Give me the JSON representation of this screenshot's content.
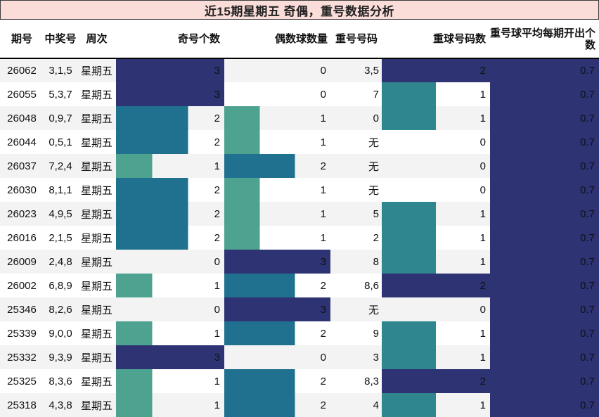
{
  "title": "近15期星期五 奇偶，重号数据分析",
  "colors": {
    "navy": "#2d3373",
    "teal_dark": "#20718f",
    "teal_mid": "#2f868f",
    "green": "#4da290",
    "title_bg": "#fadcd9",
    "title_border": "#3c3c3c",
    "stripe": "#f3f3f3",
    "header_border": "#000000"
  },
  "chart_data": {
    "type": "table",
    "title": "近15期星期五 奇偶，重号数据分析",
    "columns": [
      "期号",
      "中奖号",
      "周次",
      "奇号个数",
      "偶数球数量",
      "重号号码",
      "重球号码数",
      "重号球平均每期开出个数"
    ],
    "bar_columns": {
      "odd": {
        "max": 3
      },
      "even": {
        "max": 3
      },
      "rc": {
        "max": 2
      },
      "avg": {
        "max": 0.7
      }
    },
    "value_colors": {
      "odd": {
        "3": "navy",
        "2": "teal_dark",
        "1": "green"
      },
      "even": {
        "3": "navy",
        "2": "teal_dark",
        "1": "green"
      },
      "rc": {
        "2": "navy",
        "1": "teal_mid"
      },
      "avg": {
        "0.7": "navy"
      }
    },
    "rows": [
      {
        "issue": "26062",
        "win": "3,1,5",
        "week": "星期五",
        "odd": 3,
        "even": 0,
        "repeat": "3,5",
        "rc": 2,
        "avg": "0.7"
      },
      {
        "issue": "26055",
        "win": "5,3,7",
        "week": "星期五",
        "odd": 3,
        "even": 0,
        "repeat": "7",
        "rc": 1,
        "avg": "0.7"
      },
      {
        "issue": "26048",
        "win": "0,9,7",
        "week": "星期五",
        "odd": 2,
        "even": 1,
        "repeat": "0",
        "rc": 1,
        "avg": "0.7"
      },
      {
        "issue": "26044",
        "win": "0,5,1",
        "week": "星期五",
        "odd": 2,
        "even": 1,
        "repeat": "无",
        "rc": 0,
        "avg": "0.7"
      },
      {
        "issue": "26037",
        "win": "7,2,4",
        "week": "星期五",
        "odd": 1,
        "even": 2,
        "repeat": "无",
        "rc": 0,
        "avg": "0.7"
      },
      {
        "issue": "26030",
        "win": "8,1,1",
        "week": "星期五",
        "odd": 2,
        "even": 1,
        "repeat": "无",
        "rc": 0,
        "avg": "0.7"
      },
      {
        "issue": "26023",
        "win": "4,9,5",
        "week": "星期五",
        "odd": 2,
        "even": 1,
        "repeat": "5",
        "rc": 1,
        "avg": "0.7"
      },
      {
        "issue": "26016",
        "win": "2,1,5",
        "week": "星期五",
        "odd": 2,
        "even": 1,
        "repeat": "2",
        "rc": 1,
        "avg": "0.7"
      },
      {
        "issue": "26009",
        "win": "2,4,8",
        "week": "星期五",
        "odd": 0,
        "even": 3,
        "repeat": "8",
        "rc": 1,
        "avg": "0.7"
      },
      {
        "issue": "26002",
        "win": "6,8,9",
        "week": "星期五",
        "odd": 1,
        "even": 2,
        "repeat": "8,6",
        "rc": 2,
        "avg": "0.7"
      },
      {
        "issue": "25346",
        "win": "8,2,6",
        "week": "星期五",
        "odd": 0,
        "even": 3,
        "repeat": "无",
        "rc": 0,
        "avg": "0.7"
      },
      {
        "issue": "25339",
        "win": "9,0,0",
        "week": "星期五",
        "odd": 1,
        "even": 2,
        "repeat": "9",
        "rc": 1,
        "avg": "0.7"
      },
      {
        "issue": "25332",
        "win": "9,3,9",
        "week": "星期五",
        "odd": 3,
        "even": 0,
        "repeat": "3",
        "rc": 1,
        "avg": "0.7"
      },
      {
        "issue": "25325",
        "win": "8,3,6",
        "week": "星期五",
        "odd": 1,
        "even": 2,
        "repeat": "8,3",
        "rc": 2,
        "avg": "0.7"
      },
      {
        "issue": "25318",
        "win": "4,3,8",
        "week": "星期五",
        "odd": 1,
        "even": 2,
        "repeat": "4",
        "rc": 1,
        "avg": "0.7"
      }
    ]
  }
}
